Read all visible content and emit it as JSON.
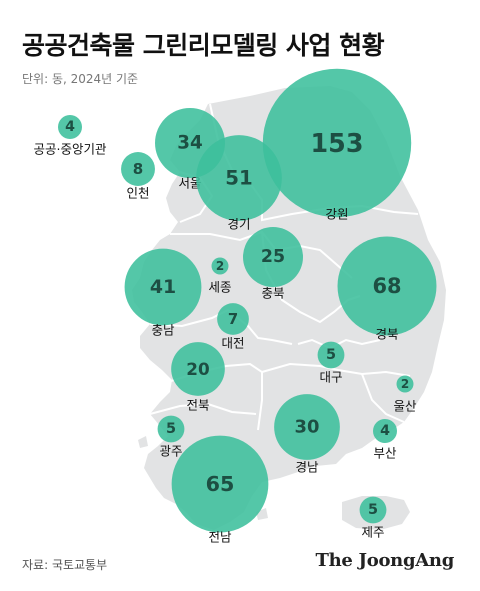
{
  "header": {
    "title": "공공건축물 그린리모델링 사업 현황",
    "unit": "단위: 동, 2024년 기준"
  },
  "footer": {
    "source": "자료: 국토교통부",
    "brand": "The JoongAng"
  },
  "colors": {
    "bubble": "#3cbf9c",
    "bubble_dark": "#2e9d80",
    "land": "#e2e3e4",
    "border": "#ffffff",
    "value_text": "#1d4f43"
  },
  "chart_data": {
    "type": "bubble-map",
    "unit": "동",
    "regions": [
      {
        "name": "공공·중앙기관",
        "value": 4
      },
      {
        "name": "인천",
        "value": 8
      },
      {
        "name": "서울",
        "value": 34
      },
      {
        "name": "경기",
        "value": 51
      },
      {
        "name": "강원",
        "value": 153
      },
      {
        "name": "세종",
        "value": 2
      },
      {
        "name": "충북",
        "value": 25
      },
      {
        "name": "충남",
        "value": 41
      },
      {
        "name": "경북",
        "value": 68
      },
      {
        "name": "대전",
        "value": 7
      },
      {
        "name": "대구",
        "value": 5
      },
      {
        "name": "울산",
        "value": 2
      },
      {
        "name": "전북",
        "value": 20
      },
      {
        "name": "광주",
        "value": 5
      },
      {
        "name": "부산",
        "value": 4
      },
      {
        "name": "경남",
        "value": 30
      },
      {
        "name": "전남",
        "value": 65
      },
      {
        "name": "제주",
        "value": 5
      }
    ]
  }
}
